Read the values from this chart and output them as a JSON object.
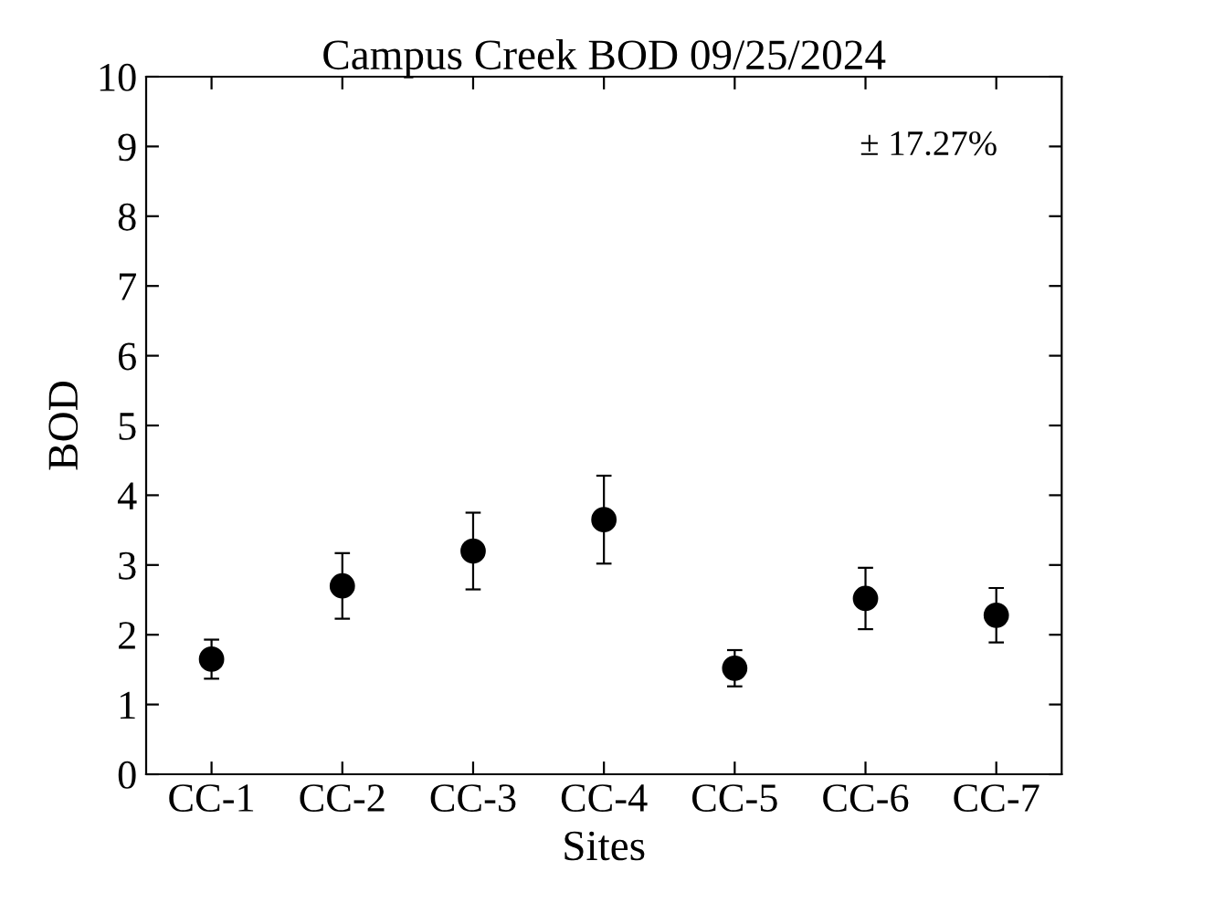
{
  "chart_data": {
    "type": "scatter",
    "title": "Campus Creek BOD 09/25/2024",
    "xlabel": "Sites",
    "ylabel": "BOD",
    "categories": [
      "CC-1",
      "CC-2",
      "CC-3",
      "CC-4",
      "CC-5",
      "CC-6",
      "CC-7"
    ],
    "values": [
      1.65,
      2.7,
      3.2,
      3.65,
      1.52,
      2.52,
      2.28
    ],
    "errors": [
      0.28,
      0.47,
      0.55,
      0.63,
      0.26,
      0.44,
      0.39
    ],
    "color": "#000000",
    "marker": "circle",
    "grid": false,
    "legend": false,
    "ylim": [
      0,
      10
    ],
    "yticks": [
      0,
      1,
      2,
      3,
      4,
      5,
      6,
      7,
      8,
      9,
      10
    ],
    "annotations": [
      "± 17.27%"
    ]
  }
}
